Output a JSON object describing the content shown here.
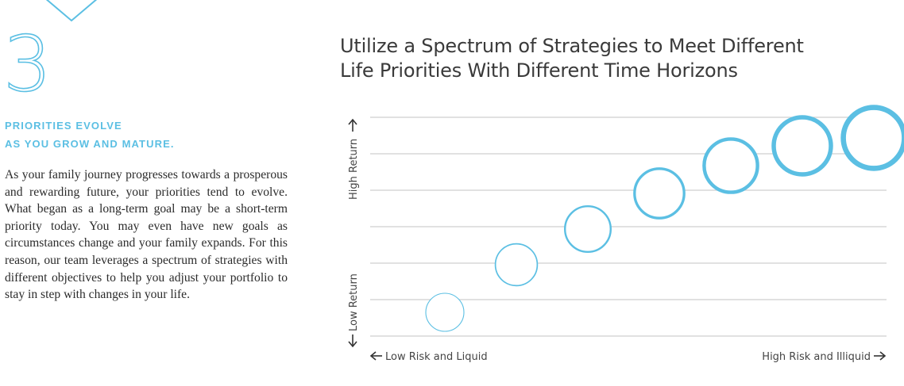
{
  "section": {
    "step_number": "3",
    "subhead_line1": "PRIORITIES EVOLVE",
    "subhead_line2": "AS YOU GROW AND MATURE.",
    "body": "As your family journey progresses towards a prosperous and rewarding future, your priorities tend to evolve. What began as a long-term goal may be a short-term priority today. You may even have new goals as circumstances change and your family expands. For this reason, our team leverages a spectrum of strategies with different objectives to help you adjust your portfolio to stay in step with changes in your life."
  },
  "colors": {
    "accent": "#5bbfe3",
    "text": "#2b2b2b",
    "gridline": "#cfcfcf"
  },
  "chart_data": {
    "type": "scatter",
    "title_line1": "Utilize a Spectrum of Strategies to Meet Different",
    "title_line2": "Life Priorities With Different Time Horizons",
    "ylabel_high": "High Return",
    "ylabel_low": "Low Return",
    "xlabel_left": "Low Risk and Liquid",
    "xlabel_right": "High Risk and Illiquid",
    "grid": true,
    "gridline_count": 7,
    "xlim": [
      0,
      7
    ],
    "ylim": [
      0,
      6
    ],
    "points": [
      {
        "x": 1,
        "y": 0.6,
        "size": 1.0,
        "weight": 1.0
      },
      {
        "x": 2,
        "y": 1.8,
        "size": 1.1,
        "weight": 1.5
      },
      {
        "x": 3,
        "y": 2.7,
        "size": 1.2,
        "weight": 2.2
      },
      {
        "x": 4,
        "y": 3.6,
        "size": 1.3,
        "weight": 3.0
      },
      {
        "x": 5,
        "y": 4.3,
        "size": 1.4,
        "weight": 4.0
      },
      {
        "x": 6,
        "y": 4.8,
        "size": 1.5,
        "weight": 5.0
      },
      {
        "x": 7,
        "y": 5.0,
        "size": 1.6,
        "weight": 6.0
      }
    ]
  }
}
